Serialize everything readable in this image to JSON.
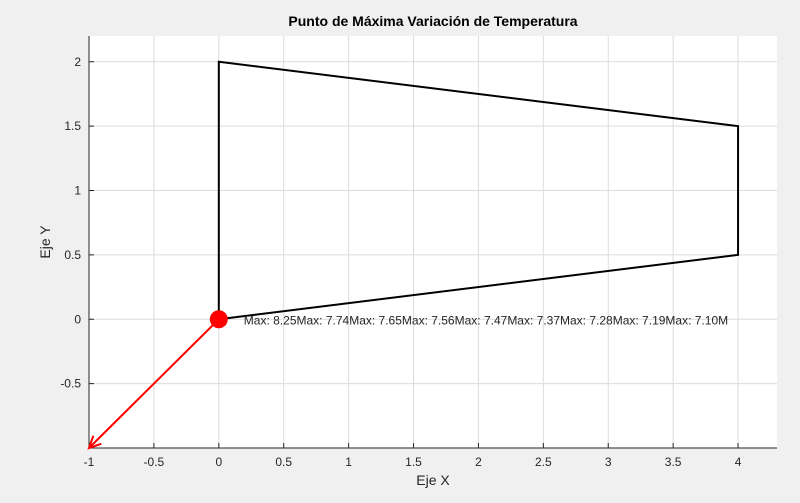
{
  "chart_data": {
    "type": "line",
    "title": "Punto de Máxima Variación de Temperatura",
    "xlabel": "Eje X",
    "ylabel": "Eje Y",
    "xlim": [
      -1,
      4.3
    ],
    "ylim": [
      -1,
      2.2
    ],
    "xticks": [
      -1,
      -0.5,
      0,
      0.5,
      1,
      1.5,
      2,
      2.5,
      3,
      3.5,
      4
    ],
    "xtick_labels": [
      "-1",
      "-0.5",
      "0",
      "0.5",
      "1",
      "1.5",
      "2",
      "2.5",
      "3",
      "3.5",
      "4"
    ],
    "yticks": [
      -0.5,
      0,
      0.5,
      1,
      1.5,
      2
    ],
    "ytick_labels": [
      "-0.5",
      "0",
      "0.5",
      "1",
      "1.5",
      "2"
    ],
    "grid": true,
    "series": [
      {
        "kind": "polygon",
        "color": "#000000",
        "x": [
          0,
          4,
          4,
          0,
          0
        ],
        "y": [
          0,
          0.5,
          1.5,
          2,
          0
        ]
      }
    ],
    "marker": {
      "x": 0,
      "y": 0,
      "color": "#ff0000"
    },
    "arrow": {
      "from": [
        0,
        0
      ],
      "to": [
        -1,
        -1
      ],
      "color": "#ff0000"
    },
    "annotations": [
      "Max: 8.25",
      "Max: 7.74",
      "Max: 7.65",
      "Max: 7.56",
      "Max: 7.47",
      "Max: 7.37",
      "Max: 7.28",
      "Max: 7.19",
      "Max: 7.10M"
    ]
  }
}
